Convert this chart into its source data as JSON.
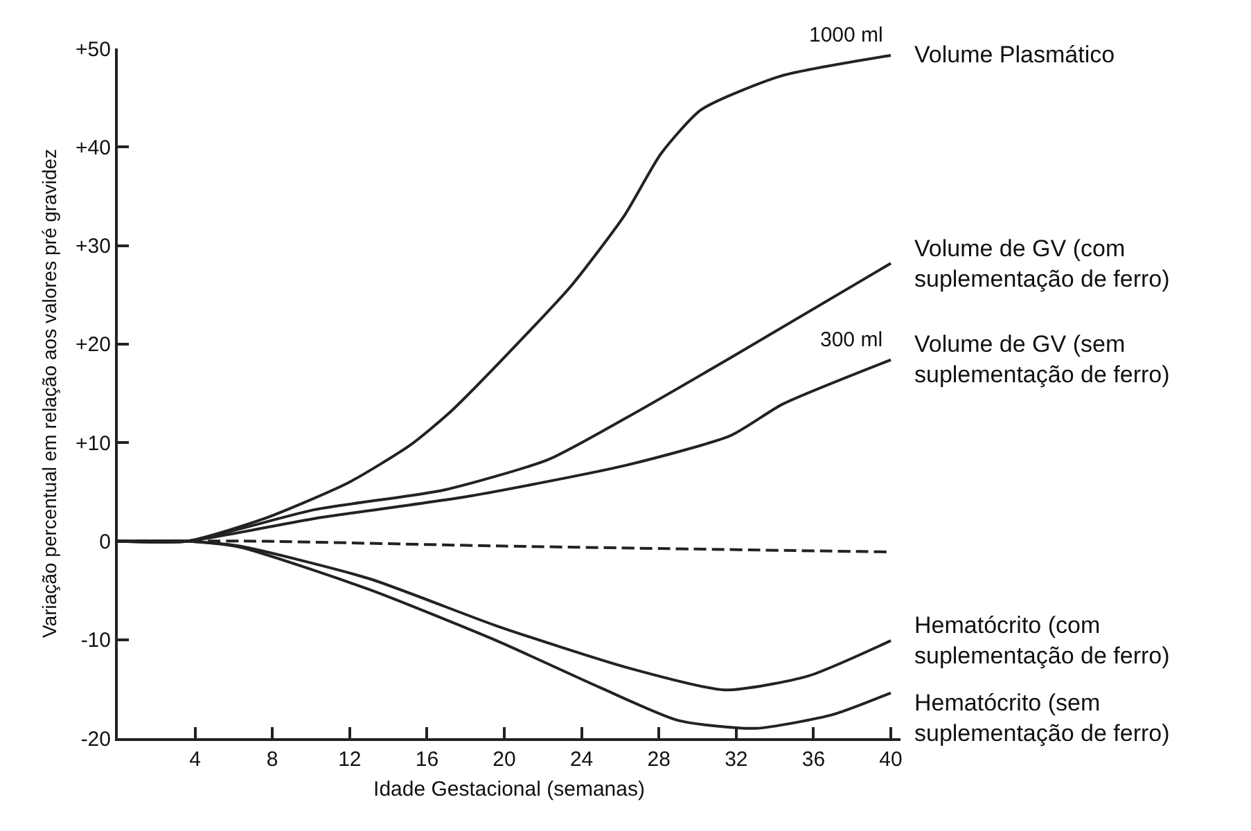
{
  "chart_data": {
    "type": "line",
    "xlabel": "Idade Gestacional (semanas)",
    "ylabel": "Variação percentual em relação aos valores pré gravidez",
    "xlim": [
      0,
      40.5
    ],
    "xticks": [
      4,
      8,
      12,
      16,
      20,
      24,
      28,
      32,
      36,
      40
    ],
    "ylim": [
      -20,
      50
    ],
    "yticks": [
      {
        "value": 50,
        "label": "+50"
      },
      {
        "value": 40,
        "label": "+40"
      },
      {
        "value": 30,
        "label": "+30"
      },
      {
        "value": 20,
        "label": "+20"
      },
      {
        "value": 10,
        "label": "+10"
      },
      0,
      -10,
      -20
    ],
    "legend": false,
    "marker": "none",
    "series": [
      {
        "name": "Volume Plasmático",
        "color": "#222222",
        "line_style": "solid",
        "x": [
          0,
          3.6,
          7.6,
          11.9,
          15.1,
          17.2,
          21,
          23.5,
          26.2,
          28.1,
          30.2,
          34.3,
          40
        ],
        "values": [
          0,
          0,
          2.3,
          5.9,
          9.7,
          13.1,
          20.7,
          26,
          33,
          39.3,
          43.8,
          47.2,
          49.3
        ]
      },
      {
        "name": "Volume de GV (com\nsuplementação de ferro)",
        "color": "#222222",
        "line_style": "solid",
        "x": [
          0,
          3.6,
          10.2,
          16.9,
          22.3,
          26.3,
          31.7,
          40
        ],
        "values": [
          0,
          0,
          3.2,
          5.2,
          8.3,
          12.5,
          18.6,
          28.2
        ]
      },
      {
        "name": "Volume de GV (sem\nsuplementação de ferro)",
        "color": "#222222",
        "line_style": "solid",
        "x": [
          0,
          3.6,
          10.2,
          18.3,
          26.3,
          31.7,
          34.4,
          40
        ],
        "values": [
          0,
          0,
          2.3,
          4.6,
          7.7,
          10.7,
          13.9,
          18.4
        ]
      },
      {
        "color": "#222222",
        "line_style": "dashed",
        "x": [
          0,
          7,
          20,
          40
        ],
        "values": [
          0,
          0,
          -0.5,
          -1.1
        ]
      },
      {
        "name": "Hematócrito (com\nsuplementação de ferro)",
        "color": "#222222",
        "line_style": "solid",
        "x": [
          0,
          3.6,
          6.3,
          13,
          19.6,
          26.3,
          31.4,
          35.7,
          40
        ],
        "values": [
          0,
          0,
          -0.5,
          -3.8,
          -8.6,
          -12.8,
          -15.1,
          -13.7,
          -10.1
        ]
      },
      {
        "name": "Hematócrito (sem\nsuplementação de ferro)",
        "color": "#222222",
        "line_style": "solid",
        "x": [
          0,
          3.6,
          6.3,
          13,
          19.6,
          25,
          29,
          33,
          37,
          40
        ],
        "values": [
          0,
          0,
          -0.6,
          -4.9,
          -10.1,
          -14.9,
          -18.2,
          -19,
          -17.6,
          -15.4
        ]
      }
    ],
    "annotations": [
      {
        "text": "1000 ml",
        "x": 40,
        "y": 49.3
      },
      {
        "text": "300 ml",
        "x": 40,
        "y": 18.4
      }
    ]
  }
}
